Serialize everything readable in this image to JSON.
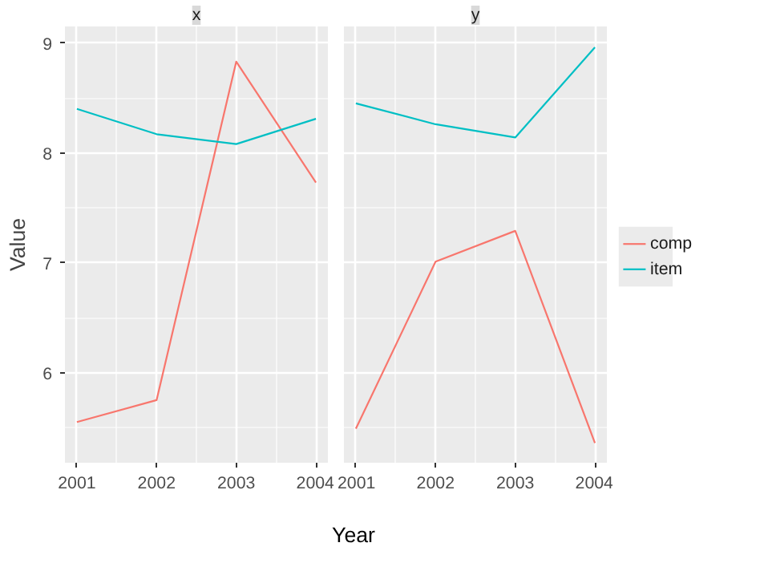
{
  "chart_data": [
    {
      "type": "line",
      "title": "x",
      "ylabel": "Value",
      "x": [
        2001,
        2002,
        2003,
        2004
      ],
      "xlim": [
        2000.85,
        2004.15
      ],
      "xticks": [
        2001,
        2002,
        2003,
        2004
      ],
      "ylim": [
        5.18,
        9.15
      ],
      "yticks": [
        6,
        7,
        8,
        9
      ],
      "grid": true,
      "legend": "right",
      "series": [
        {
          "name": "comp",
          "color": "#f8766d",
          "values": [
            5.55,
            5.75,
            8.83,
            7.73
          ]
        },
        {
          "name": "item",
          "color": "#00bfc4",
          "values": [
            8.4,
            8.17,
            8.08,
            8.31
          ]
        }
      ]
    },
    {
      "type": "line",
      "title": "y",
      "xlabel": "Year",
      "x": [
        2001,
        2002,
        2003,
        2004
      ],
      "xlim": [
        2000.85,
        2004.15
      ],
      "xticks": [
        2001,
        2002,
        2003,
        2004
      ],
      "ylim": [
        5.18,
        9.15
      ],
      "yticks": [
        6,
        7,
        8,
        9
      ],
      "grid": true,
      "legend": "right",
      "tick_labels": "x",
      "series": [
        {
          "name": "comp",
          "color": "#f8766d",
          "values": [
            5.49,
            7.01,
            7.29,
            5.36
          ]
        },
        {
          "name": "item",
          "color": "#00bfc4",
          "values": [
            8.45,
            8.26,
            8.14,
            8.96
          ]
        }
      ]
    }
  ]
}
